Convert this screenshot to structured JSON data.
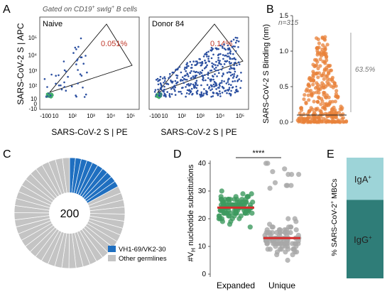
{
  "panel_letters": {
    "a": "A",
    "b": "B",
    "c": "C",
    "d": "D",
    "e": "E"
  },
  "panel_a": {
    "gate_caption_prefix": "Gated on CD19",
    "gate_caption_sup": "+",
    "gate_caption_mid": " swIg",
    "gate_caption_sup2": "+",
    "gate_caption_suffix": " B cells",
    "ylabel": "SARS-CoV-2 S | APC",
    "xlabel": "SARS-CoV-2 S | PE",
    "colors": {
      "dots": "#2b4fa0",
      "core": "#3fae6a",
      "gate": "#111111",
      "pct": "#c0392b"
    }
  },
  "chart_data": [
    {
      "type": "scatter",
      "panel": "A-left",
      "title": "Naive",
      "xlabel": "SARS-CoV-2 S | PE",
      "ylabel": "SARS-CoV-2 S | APC",
      "scale": "biexponential",
      "x_ticks": [
        "-10",
        "0",
        "10",
        "10²",
        "10³",
        "10⁴",
        "10⁵"
      ],
      "y_ticks": [
        "-10",
        "0",
        "10",
        "10²",
        "10³",
        "10⁴",
        "10⁵"
      ],
      "gate_annotation": "0.051%"
    },
    {
      "type": "scatter",
      "panel": "A-right",
      "title": "Donor 84",
      "xlabel": "SARS-CoV-2 S | PE",
      "scale": "biexponential",
      "x_ticks": [
        "-10",
        "0",
        "10",
        "10²",
        "10³",
        "10⁴",
        "10⁵"
      ],
      "gate_annotation": "0.14%"
    },
    {
      "type": "scatter",
      "panel": "B",
      "ylabel": "SARS-CoV-2 S Binding (nm)",
      "ylim": [
        0,
        1.5
      ],
      "y_ticks": [
        0.0,
        0.5,
        1.0,
        1.5
      ],
      "n_label": "n=315",
      "threshold": 0.1,
      "percent_label": "63.5%",
      "color": "#e8823a"
    },
    {
      "type": "pie",
      "panel": "C",
      "center_label": "200",
      "segments": [
        {
          "label": "VH1-69/VK2-30",
          "value": 17,
          "color": "#1f6fc0"
        },
        {
          "label": "Other germlines",
          "value": 83,
          "color": "#c4c4c4"
        }
      ]
    },
    {
      "type": "scatter",
      "panel": "D",
      "ylabel_prefix": "#V",
      "ylabel_sub": "H",
      "ylabel_suffix": " nucleotide substitutions",
      "categories": [
        "Expanded",
        "Unique"
      ],
      "ylim": [
        0,
        40
      ],
      "y_ticks": [
        0,
        10,
        20,
        30,
        40
      ],
      "medians": [
        24,
        13
      ],
      "significance": "****",
      "colors": {
        "Expanded": "#3d9a5f",
        "Unique": "#a8a8a8",
        "median": "#d62d2d"
      }
    },
    {
      "type": "bar",
      "panel": "E",
      "ylabel_prefix": "% SARS-CoV-2",
      "ylabel_sup": "+",
      "ylabel_suffix": " MBCs",
      "series": [
        {
          "name": "IgG",
          "sup": "+",
          "value": 65,
          "color": "#2f7d78"
        },
        {
          "name": "IgA",
          "sup": "+",
          "value": 35,
          "color": "#9dd4d8"
        }
      ]
    }
  ]
}
